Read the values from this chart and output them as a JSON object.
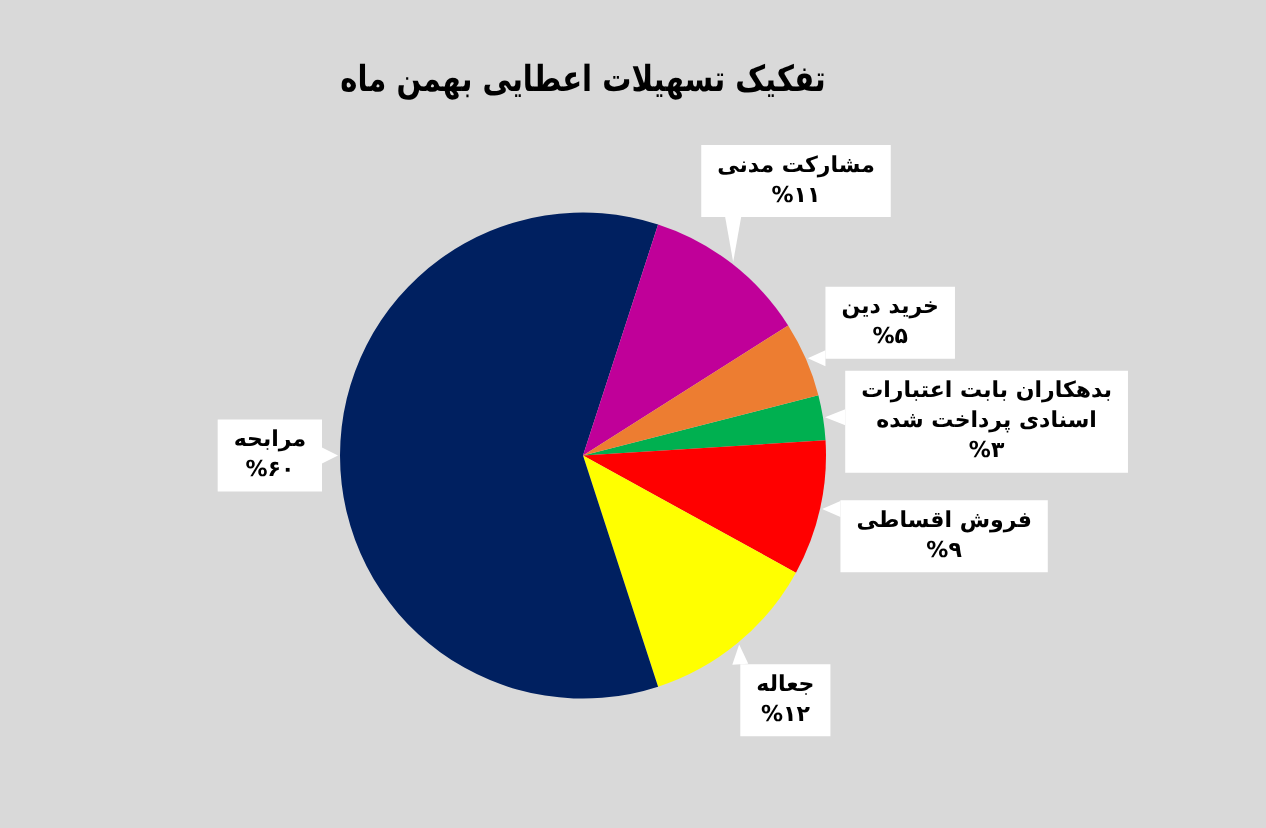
{
  "chart_data": {
    "type": "pie",
    "title": "تفکیک تسهیلات اعطایی بهمن ماه",
    "categories": [
      "بدهکاران بابت اعتبارات اسنادی پرداخت شده",
      "فروش اقساطی",
      "جعاله",
      "مرابحه",
      "مشارکت مدنی",
      "خرید دین"
    ],
    "values": [
      3,
      9,
      12,
      60,
      11,
      5
    ],
    "value_labels": [
      "%۳",
      "%۹",
      "%۱۲",
      "%۶۰",
      "%۱۱",
      "%۵"
    ],
    "colors": [
      "#00b050",
      "#ff0000",
      "#ffff00",
      "#002060",
      "#c00099",
      "#ed7d31"
    ],
    "legend": false
  }
}
